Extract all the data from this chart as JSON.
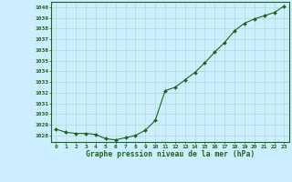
{
  "x": [
    0,
    1,
    2,
    3,
    4,
    5,
    6,
    7,
    8,
    9,
    10,
    11,
    12,
    13,
    14,
    15,
    16,
    17,
    18,
    19,
    20,
    21,
    22,
    23
  ],
  "y": [
    1028.6,
    1028.3,
    1028.2,
    1028.2,
    1028.1,
    1027.7,
    1027.6,
    1027.8,
    1028.0,
    1028.5,
    1029.4,
    1032.2,
    1032.5,
    1033.2,
    1033.9,
    1034.8,
    1035.8,
    1036.7,
    1037.8,
    1038.5,
    1038.9,
    1039.2,
    1039.5,
    1040.1
  ],
  "line_color": "#1a6618",
  "marker_color": "#1a6618",
  "bg_color": "#cceeff",
  "grid_color": "#aaddcc",
  "title": "Graphe pression niveau de la mer (hPa)",
  "ylabel_min": 1028,
  "ylabel_max": 1040,
  "xlim": [
    -0.5,
    23.5
  ],
  "ylim": [
    1027.4,
    1040.5
  ]
}
